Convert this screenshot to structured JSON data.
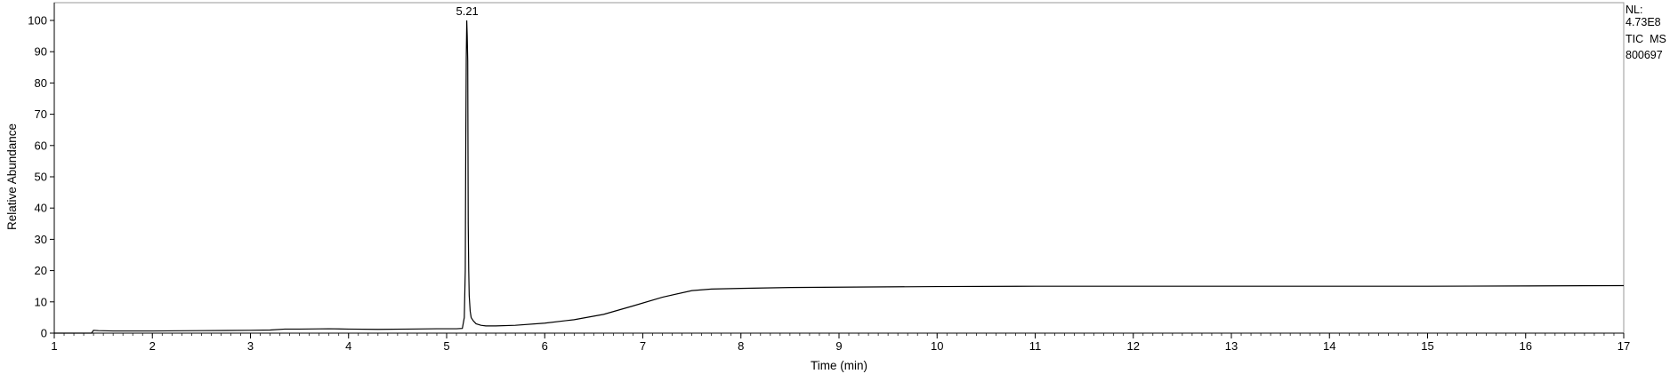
{
  "chart_data": {
    "type": "line",
    "xlabel": "Time (min)",
    "ylabel": "Relative Abundance",
    "xlim": [
      1,
      17
    ],
    "ylim": [
      0,
      100
    ],
    "xticks": [
      1,
      2,
      3,
      4,
      5,
      6,
      7,
      8,
      9,
      10,
      11,
      12,
      13,
      14,
      15,
      16,
      17
    ],
    "yticks": [
      0,
      10,
      20,
      30,
      40,
      50,
      60,
      70,
      80,
      90,
      100
    ],
    "grid": false,
    "annotations": [
      {
        "x": 5.21,
        "y": 100,
        "text": "5.21"
      }
    ],
    "series": [
      {
        "x": [
          1.0,
          1.38,
          1.4,
          1.45,
          1.6,
          2.0,
          2.5,
          3.0,
          3.2,
          3.35,
          3.5,
          3.8,
          4.0,
          4.3,
          4.6,
          4.9,
          5.1,
          5.16,
          5.18,
          5.19,
          5.195,
          5.2,
          5.205,
          5.21,
          5.215,
          5.22,
          5.225,
          5.23,
          5.24,
          5.25,
          5.27,
          5.3,
          5.35,
          5.4,
          5.5,
          5.7,
          6.0,
          6.3,
          6.6,
          6.9,
          7.2,
          7.5,
          7.7,
          8.0,
          8.5,
          9.0,
          10.0,
          11.0,
          12.0,
          13.0,
          14.0,
          15.0,
          16.0,
          17.0
        ],
        "y": [
          0,
          0,
          0.9,
          0.8,
          0.7,
          0.7,
          0.8,
          0.9,
          1.0,
          1.3,
          1.3,
          1.4,
          1.3,
          1.2,
          1.3,
          1.4,
          1.4,
          1.5,
          5,
          20,
          60,
          88,
          100,
          95,
          87,
          35,
          20,
          12,
          7,
          5,
          4,
          3,
          2.5,
          2.3,
          2.3,
          2.5,
          3.2,
          4.3,
          6.0,
          8.7,
          11.5,
          13.6,
          14.1,
          14.3,
          14.6,
          14.7,
          14.9,
          15.0,
          15.0,
          15.0,
          15.0,
          15.0,
          15.1,
          15.2
        ]
      }
    ]
  },
  "nl_info": [
    "NL:",
    "4.73E8",
    "TIC  MS",
    "800697"
  ]
}
